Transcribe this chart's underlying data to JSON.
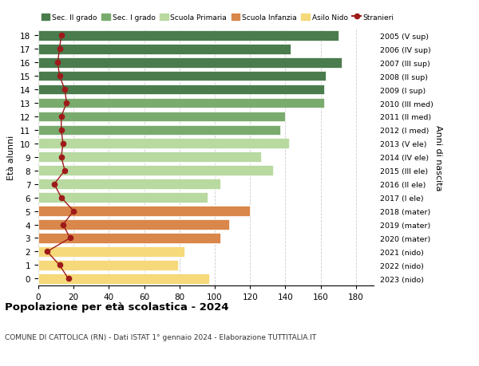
{
  "ages": [
    18,
    17,
    16,
    15,
    14,
    13,
    12,
    11,
    10,
    9,
    8,
    7,
    6,
    5,
    4,
    3,
    2,
    1,
    0
  ],
  "bar_values": [
    170,
    143,
    172,
    163,
    162,
    162,
    140,
    137,
    142,
    126,
    133,
    103,
    96,
    120,
    108,
    103,
    83,
    79,
    97
  ],
  "stranieri": [
    13,
    12,
    11,
    12,
    15,
    16,
    13,
    13,
    14,
    13,
    15,
    9,
    13,
    20,
    14,
    18,
    5,
    12,
    17
  ],
  "right_labels": [
    "2005 (V sup)",
    "2006 (IV sup)",
    "2007 (III sup)",
    "2008 (II sup)",
    "2009 (I sup)",
    "2010 (III med)",
    "2011 (II med)",
    "2012 (I med)",
    "2013 (V ele)",
    "2014 (IV ele)",
    "2015 (III ele)",
    "2016 (II ele)",
    "2017 (I ele)",
    "2018 (mater)",
    "2019 (mater)",
    "2020 (mater)",
    "2021 (nido)",
    "2022 (nido)",
    "2023 (nido)"
  ],
  "bar_colors": [
    "#4a7c4e",
    "#4a7c4e",
    "#4a7c4e",
    "#4a7c4e",
    "#4a7c4e",
    "#7aab6e",
    "#7aab6e",
    "#7aab6e",
    "#b8d9a0",
    "#b8d9a0",
    "#b8d9a0",
    "#b8d9a0",
    "#b8d9a0",
    "#d9874a",
    "#d9874a",
    "#d9874a",
    "#f5d97a",
    "#f5d97a",
    "#f5d97a"
  ],
  "legend_labels": [
    "Sec. II grado",
    "Sec. I grado",
    "Scuola Primaria",
    "Scuola Infanzia",
    "Asilo Nido",
    "Stranieri"
  ],
  "legend_colors": [
    "#4a7c4e",
    "#7aab6e",
    "#b8d9a0",
    "#d9874a",
    "#f5d97a",
    "#9e1a1a"
  ],
  "title": "Popolazione per età scolastica - 2024",
  "subtitle": "COMUNE DI CATTOLICA (RN) - Dati ISTAT 1° gennaio 2024 - Elaborazione TUTTITALIA.IT",
  "ylabel": "Età alunni",
  "right_ylabel": "Anni di nascita",
  "xlim": [
    0,
    190
  ],
  "xticks": [
    0,
    20,
    40,
    60,
    80,
    100,
    120,
    140,
    160,
    180
  ],
  "stranieri_color": "#9e1a1a",
  "bar_height": 0.75,
  "background_color": "#ffffff",
  "grid_color": "#cccccc"
}
